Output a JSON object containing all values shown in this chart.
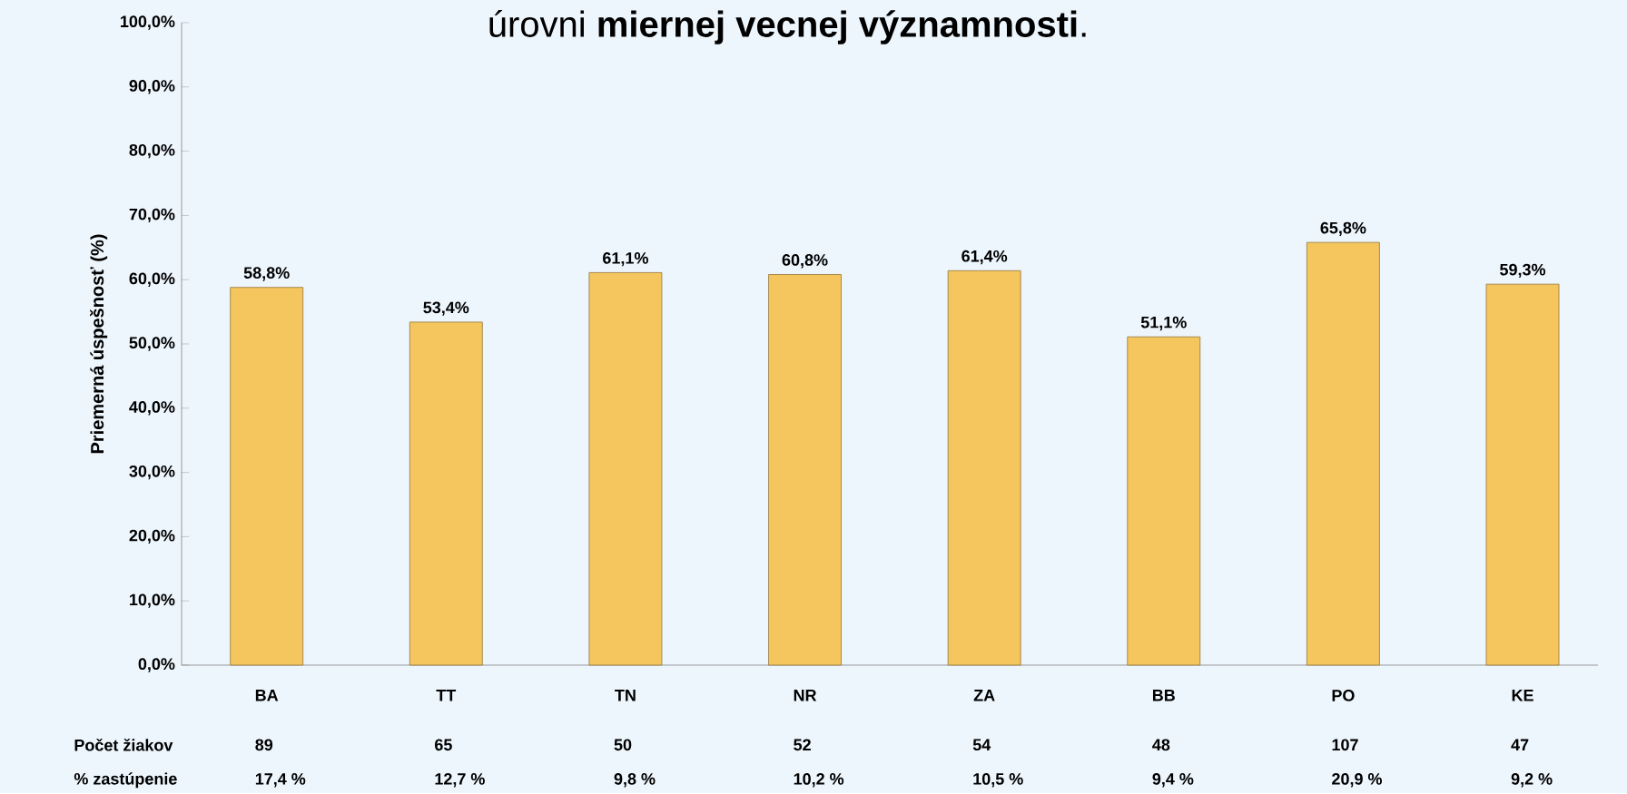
{
  "chart_data": {
    "type": "bar",
    "title": "úrovni **miernej vecnej významnosti**.",
    "ylabel": "Priemerná úspešnosť (%)",
    "categories": [
      "BA",
      "TT",
      "TN",
      "NR",
      "ZA",
      "BB",
      "PO",
      "KE"
    ],
    "values": [
      58.8,
      53.4,
      61.1,
      60.8,
      61.4,
      51.1,
      65.8,
      59.3
    ],
    "value_labels": [
      "58,8%",
      "53,4%",
      "61,1%",
      "60,8%",
      "61,4%",
      "51,1%",
      "65,8%",
      "59,3%"
    ],
    "color": "#f5c55e",
    "ylim": [
      0,
      100
    ],
    "yticks": [
      {
        "value": 0,
        "label": "0,0%"
      },
      {
        "value": 10,
        "label": "10,0%"
      },
      {
        "value": 20,
        "label": "20,0%"
      },
      {
        "value": 30,
        "label": "30,0%"
      },
      {
        "value": 40,
        "label": "40,0%"
      },
      {
        "value": 50,
        "label": "50,0%"
      },
      {
        "value": 60,
        "label": "60,0%"
      },
      {
        "value": 70,
        "label": "70,0%"
      },
      {
        "value": 80,
        "label": "80,0%"
      },
      {
        "value": 90,
        "label": "90,0%"
      },
      {
        "value": 100,
        "label": "100,0%"
      }
    ],
    "annotations": [
      "Počet žiakov",
      "89",
      "65",
      "50",
      "52",
      "54",
      "48",
      "107",
      "47",
      "% zastúpenie",
      "17,4 %",
      "12,7 %",
      "9,8 %",
      "10,2 %",
      "10,5 %",
      "9,4 %",
      "20,9 %",
      "9,2 %"
    ]
  }
}
